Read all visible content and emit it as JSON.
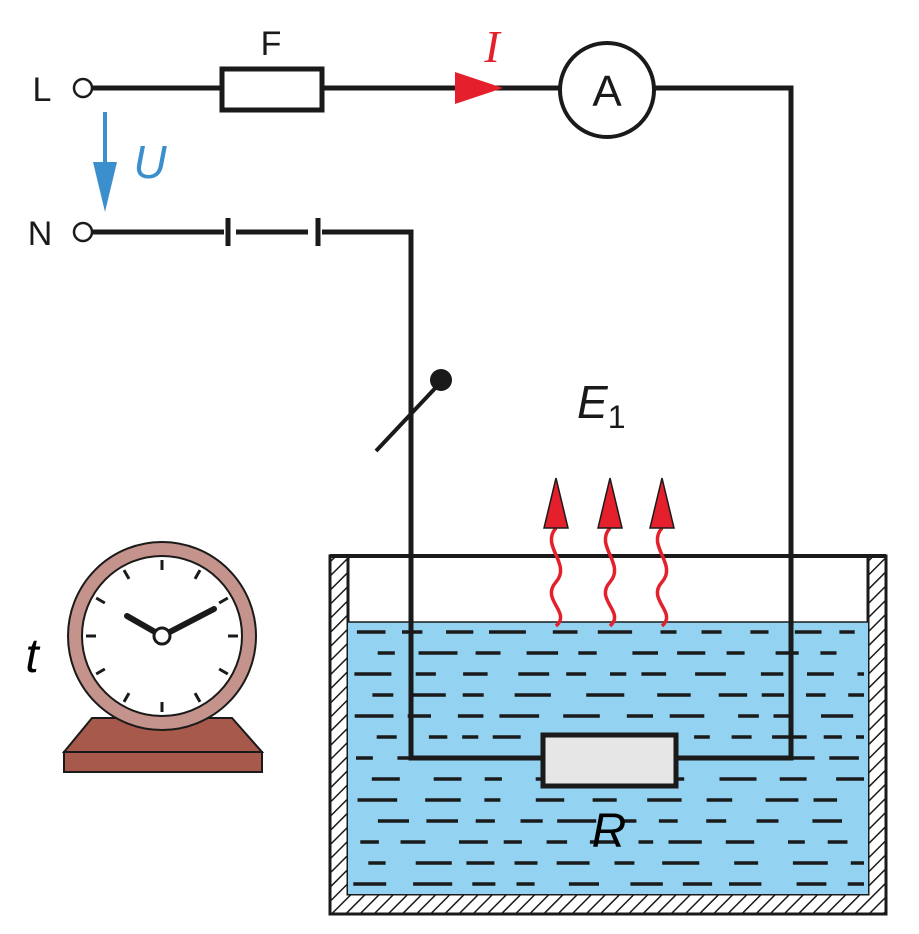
{
  "labels": {
    "line": "L",
    "neutral": "N",
    "fuse": "F",
    "current": "I",
    "voltage": "U",
    "ammeter": "A",
    "energy_main": "E",
    "energy_sub": "1",
    "resistor": "R",
    "time": "t"
  },
  "colors": {
    "wire": "#1a1a1a",
    "current_arrow": "#e3202b",
    "voltage_arrow": "#3c8fcd",
    "water": "#93d3f1",
    "water_dash": "#1a1a1a",
    "heat_wave": "#e3202b",
    "resistor_fill": "#e6e6e6",
    "clock_ring": "#c4938b",
    "clock_base": "#a75a4c",
    "clock_face": "#ffffff"
  },
  "icons": {
    "fuse": "fuse-symbol",
    "ammeter": "ammeter-symbol",
    "switch": "switch-symbol",
    "thermostat": "adjustable-thermostat-symbol",
    "clock": "clock-icon",
    "heat": "heat-wave-arrows",
    "container": "water-tank"
  }
}
